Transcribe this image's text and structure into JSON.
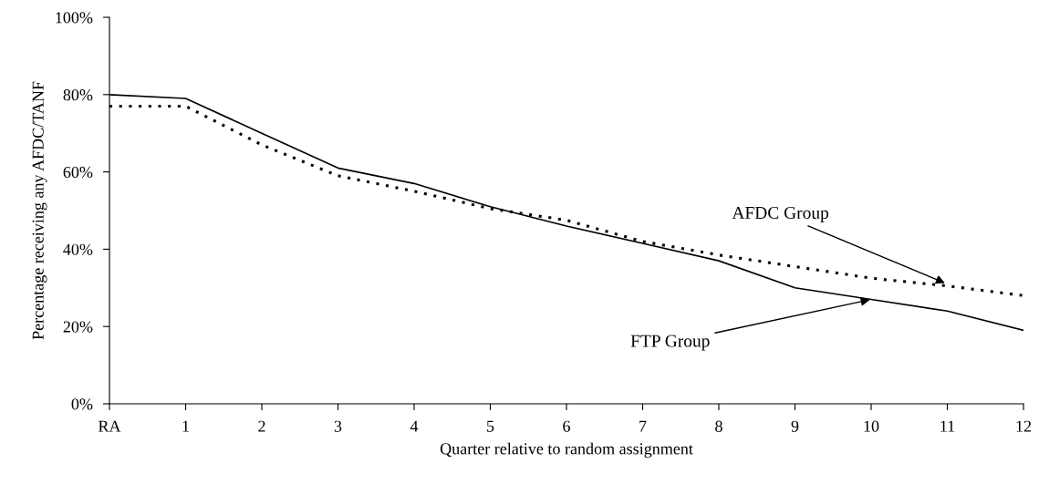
{
  "chart_data": {
    "type": "line",
    "xlabel": "Quarter relative to random assignment",
    "ylabel": "Percentage receiving any AFDC/TANF",
    "categories": [
      "RA",
      "1",
      "2",
      "3",
      "4",
      "5",
      "6",
      "7",
      "8",
      "9",
      "10",
      "11",
      "12"
    ],
    "series": [
      {
        "color": "#000000",
        "line_style": "solid",
        "values": [
          80,
          79,
          70,
          61,
          57,
          51,
          46,
          41.5,
          37,
          30,
          27,
          24,
          19
        ]
      },
      {
        "color": "#000000",
        "line_style": "dotted",
        "values": [
          77,
          77,
          67,
          59,
          55,
          50.5,
          47.5,
          42,
          38.5,
          35.5,
          32.5,
          30.5,
          28
        ]
      }
    ],
    "ylim": [
      0,
      100
    ],
    "yticks": [
      {
        "value": 0,
        "label": "0%"
      },
      {
        "value": 20,
        "label": "20%"
      },
      {
        "value": 40,
        "label": "40%"
      },
      {
        "value": 60,
        "label": "60%"
      },
      {
        "value": 80,
        "label": "80%"
      },
      {
        "value": 100,
        "label": "100%"
      }
    ],
    "annotations": [
      {
        "text": "AFDC Group",
        "x": "11",
        "y": 31
      },
      {
        "text": "FTP Group",
        "x": "10",
        "y": 27
      }
    ],
    "grid": false,
    "legend": false,
    "marker": "none"
  }
}
